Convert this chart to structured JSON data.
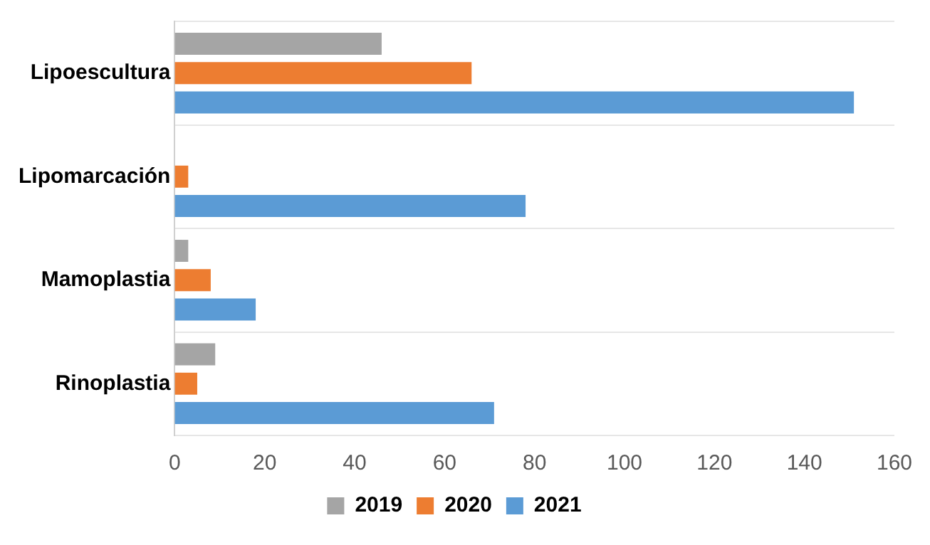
{
  "chart_data": {
    "type": "bar",
    "orientation": "horizontal",
    "categories": [
      "Lipoescultura",
      "Lipomarcación",
      "Mamoplastia",
      "Rinoplastia"
    ],
    "series": [
      {
        "name": "2019",
        "color": "#a5a5a5",
        "values": [
          46,
          0,
          3,
          9
        ]
      },
      {
        "name": "2020",
        "color": "#ed7d31",
        "values": [
          66,
          3,
          8,
          5
        ]
      },
      {
        "name": "2021",
        "color": "#5b9bd5",
        "values": [
          151,
          78,
          18,
          71
        ]
      }
    ],
    "xlim": [
      0,
      160
    ],
    "xticks": [
      0,
      20,
      40,
      60,
      80,
      100,
      120,
      140,
      160
    ],
    "grid": "y",
    "legend": "bottom"
  }
}
